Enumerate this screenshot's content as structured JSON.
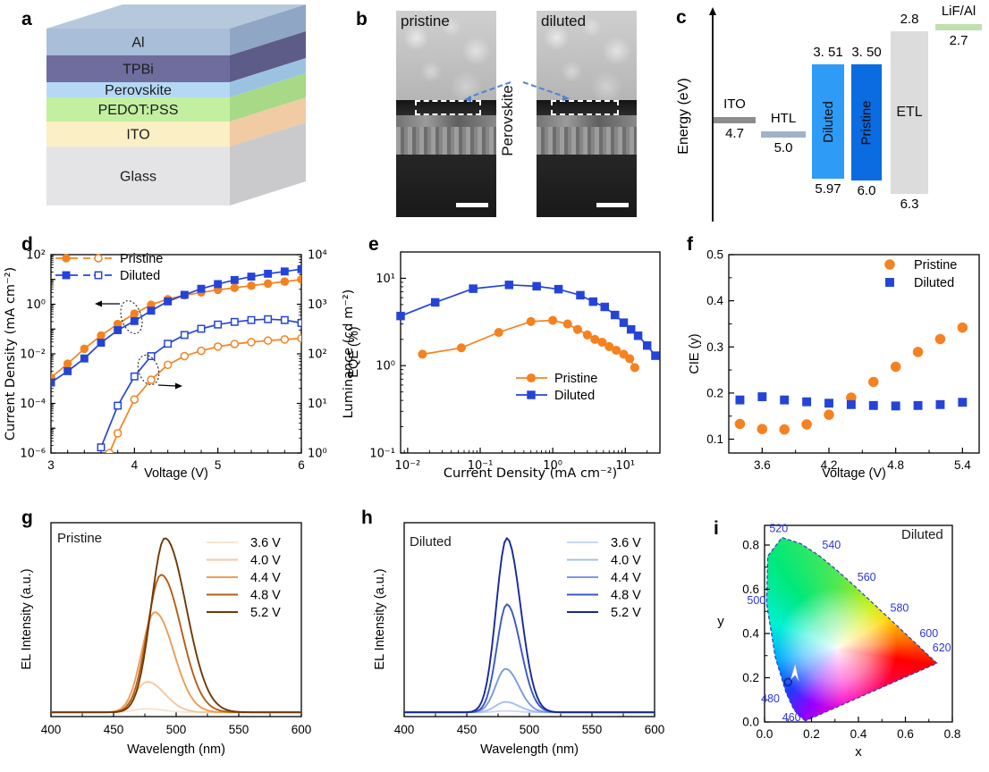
{
  "panel_letters": {
    "a": "a",
    "b": "b",
    "c": "c",
    "d": "d",
    "e": "e",
    "f": "f",
    "g": "g",
    "h": "h",
    "i": "i"
  },
  "colors": {
    "pristine": "#F58220",
    "diluted": "#2444D8",
    "arrow_blue": "#4F81D6",
    "cie_label_blue": "#2B36D8"
  },
  "panel_a": {
    "layers": [
      {
        "name": "Al",
        "front": "#A9BED9",
        "side": "#8FA6C4"
      },
      {
        "name": "TPBi",
        "front": "#6F6D9E",
        "side": "#5D5B88"
      },
      {
        "name": "Perovskite",
        "front": "#B5D9F5",
        "side": "#9CC2E2"
      },
      {
        "name": "PEDOT:PSS",
        "front": "#C2EFA0",
        "side": "#A8D986"
      },
      {
        "name": "ITO",
        "front": "#FBEFC5",
        "side": "#F0CBA4"
      },
      {
        "name": "Glass",
        "front": "#E4E4E6",
        "side": "#CACACD"
      }
    ],
    "top_color": "#B6C8DC"
  },
  "panel_b": {
    "left_label": "pristine",
    "right_label": "diluted",
    "annotation": "Perovskite"
  },
  "panel_c": {
    "axis_label": "Energy (eV)",
    "bars": [
      {
        "id": "ITO",
        "type": "thin",
        "label": "ITO",
        "value": "4.7",
        "e": 4.7,
        "color": "#8C8C8C"
      },
      {
        "id": "HTL",
        "type": "thin",
        "label": "HTL",
        "value": "5.0",
        "e": 5.0,
        "color": "#9FB3C8"
      },
      {
        "id": "Diluted",
        "type": "tall",
        "text": "Diluted",
        "top_label": "3. 51",
        "bottom_label": "5.97",
        "e_top": 3.51,
        "e_bottom": 5.97,
        "color": "#2E9BF7"
      },
      {
        "id": "Pristine",
        "type": "tall",
        "text": "Pristine",
        "top_label": "3. 50",
        "bottom_label": "6.0",
        "e_top": 3.5,
        "e_bottom": 6.0,
        "color": "#0B6BE0"
      },
      {
        "id": "ETL",
        "type": "tall",
        "text": "ETL",
        "top_label": "2.8",
        "bottom_label": "6.3",
        "e_top": 2.8,
        "e_bottom": 6.3,
        "color": "#DCDCDC"
      },
      {
        "id": "LiF/Al",
        "type": "thin",
        "label": "LiF/Al",
        "value": "2.7",
        "e": 2.7,
        "color": "#BFDFAE"
      }
    ]
  },
  "chart_data": [
    {
      "id": "d",
      "type": "line",
      "x": {
        "label": "Voltage (V)",
        "min": 3,
        "max": 6,
        "ticks": [
          {
            "v": 3,
            "label": "3"
          },
          {
            "v": 4,
            "label": "4"
          },
          {
            "v": 5,
            "label": "5"
          },
          {
            "v": 6,
            "label": "6"
          }
        ]
      },
      "y_left": {
        "label": "Current Density (mA cm⁻²)",
        "scale": "log",
        "min": 1e-06,
        "max": 100,
        "ticks": [
          {
            "v": 100,
            "label": "10²"
          },
          {
            "v": 1,
            "label": "10⁰"
          },
          {
            "v": 0.01,
            "label": "10⁻²"
          },
          {
            "v": 0.0001,
            "label": "10⁻⁴"
          },
          {
            "v": 1e-06,
            "label": "10⁻⁶"
          }
        ]
      },
      "y_right": {
        "label": "Luminance (cd m⁻²)",
        "scale": "log",
        "min": 1,
        "max": 10000,
        "ticks": [
          {
            "v": 10000,
            "label": "10⁴"
          },
          {
            "v": 1000,
            "label": "10³"
          },
          {
            "v": 100,
            "label": "10²"
          },
          {
            "v": 10,
            "label": "10¹"
          },
          {
            "v": 1,
            "label": "10⁰"
          }
        ]
      },
      "legend": [
        {
          "label": "Pristine",
          "color": "#F58220",
          "marker": "circle"
        },
        {
          "label": "Diluted",
          "color": "#2444D8",
          "marker": "square"
        }
      ],
      "series": [
        {
          "name": "Pristine current density",
          "axis": "left",
          "color": "#F58220",
          "marker": "circle",
          "fill": "filled",
          "x": [
            3.0,
            3.2,
            3.4,
            3.6,
            3.8,
            4.0,
            4.2,
            4.4,
            4.6,
            4.8,
            5.0,
            5.2,
            5.4,
            5.6,
            5.8,
            6.0
          ],
          "y": [
            0.0011,
            0.004,
            0.016,
            0.055,
            0.16,
            0.42,
            0.95,
            1.6,
            2.3,
            3.0,
            3.8,
            4.6,
            5.6,
            6.8,
            8.2,
            10
          ]
        },
        {
          "name": "Diluted current density",
          "axis": "left",
          "color": "#2444D8",
          "marker": "square",
          "fill": "filled",
          "x": [
            3.0,
            3.2,
            3.4,
            3.6,
            3.8,
            4.0,
            4.2,
            4.4,
            4.6,
            4.8,
            5.0,
            5.2,
            5.4,
            5.6,
            5.8,
            6.0
          ],
          "y": [
            0.0007,
            0.002,
            0.0065,
            0.028,
            0.09,
            0.21,
            0.55,
            1.3,
            2.4,
            4.2,
            6.5,
            9.5,
            13,
            17,
            21,
            26
          ]
        },
        {
          "name": "Pristine luminance",
          "axis": "right",
          "color": "#F58220",
          "marker": "circle",
          "fill": "open",
          "x": [
            3.7,
            3.8,
            4.0,
            4.2,
            4.4,
            4.6,
            4.8,
            5.0,
            5.2,
            5.4,
            5.6,
            5.8,
            6.0
          ],
          "y": [
            1.0,
            2.5,
            12,
            30,
            60,
            90,
            115,
            140,
            158,
            172,
            185,
            195,
            205
          ]
        },
        {
          "name": "Diluted luminance",
          "axis": "right",
          "color": "#2444D8",
          "marker": "square",
          "fill": "open",
          "x": [
            3.6,
            3.8,
            4.0,
            4.2,
            4.4,
            4.6,
            4.8,
            5.0,
            5.2,
            5.4,
            5.6,
            5.8,
            6.0
          ],
          "y": [
            1.3,
            9,
            35,
            90,
            160,
            240,
            320,
            390,
            440,
            480,
            500,
            480,
            420
          ]
        }
      ]
    },
    {
      "id": "e",
      "type": "line",
      "x": {
        "label": "Current Density (mA cm⁻²)",
        "scale": "log",
        "min": 0.008,
        "max": 30,
        "ticks": [
          {
            "v": 0.01,
            "label": "10⁻²"
          },
          {
            "v": 0.1,
            "label": "10⁻¹"
          },
          {
            "v": 1,
            "label": "10⁰"
          },
          {
            "v": 10,
            "label": "10¹"
          }
        ]
      },
      "y": {
        "label": "EQE (%)",
        "scale": "log",
        "min": 0.1,
        "max": 20,
        "ticks": [
          {
            "v": 10,
            "label": "10¹"
          },
          {
            "v": 1,
            "label": "10⁰"
          },
          {
            "v": 0.1,
            "label": "10⁻¹"
          }
        ]
      },
      "legend": [
        {
          "label": "Pristine",
          "color": "#F58220",
          "marker": "circle"
        },
        {
          "label": "Diluted",
          "color": "#2444D8",
          "marker": "square"
        }
      ],
      "series": [
        {
          "name": "Pristine EQE",
          "color": "#F58220",
          "marker": "circle",
          "fill": "filled",
          "x": [
            0.016,
            0.055,
            0.18,
            0.5,
            1.0,
            1.6,
            2.2,
            3.0,
            3.8,
            4.8,
            6.0,
            7.5,
            9.5,
            11.5,
            13.5
          ],
          "y": [
            1.35,
            1.6,
            2.4,
            3.2,
            3.3,
            3.0,
            2.6,
            2.25,
            2.0,
            1.85,
            1.65,
            1.5,
            1.35,
            1.2,
            0.95
          ]
        },
        {
          "name": "Diluted EQE",
          "color": "#2444D8",
          "marker": "square",
          "fill": "filled",
          "x": [
            0.008,
            0.024,
            0.08,
            0.25,
            0.6,
            1.2,
            2.4,
            3.6,
            5.2,
            7.2,
            9.5,
            12,
            15,
            20,
            26
          ],
          "y": [
            3.7,
            5.3,
            7.6,
            8.4,
            8.1,
            7.5,
            6.4,
            5.4,
            4.7,
            3.8,
            3.1,
            2.6,
            2.2,
            1.7,
            1.3
          ]
        }
      ]
    },
    {
      "id": "f",
      "type": "scatter",
      "x": {
        "label": "Voltage (V)",
        "min": 3.3,
        "max": 5.55,
        "ticks": [
          {
            "v": 3.6,
            "label": "3.6"
          },
          {
            "v": 4.2,
            "label": "4.2"
          },
          {
            "v": 4.8,
            "label": "4.8"
          },
          {
            "v": 5.4,
            "label": "5.4"
          }
        ]
      },
      "y": {
        "label": "CIE (y)",
        "min": 0.07,
        "max": 0.5,
        "ticks": [
          {
            "v": 0.1,
            "label": "0.1"
          },
          {
            "v": 0.2,
            "label": "0.2"
          },
          {
            "v": 0.3,
            "label": "0.3"
          },
          {
            "v": 0.4,
            "label": "0.4"
          },
          {
            "v": 0.5,
            "label": "0.5"
          }
        ]
      },
      "legend": [
        {
          "label": "Pristine",
          "color": "#F58220",
          "marker": "circle"
        },
        {
          "label": "Diluted",
          "color": "#2444D8",
          "marker": "square"
        }
      ],
      "series": [
        {
          "name": "Pristine CIE y",
          "color": "#F58220",
          "marker": "circle",
          "fill": "filled",
          "x": [
            3.4,
            3.6,
            3.8,
            4.0,
            4.2,
            4.4,
            4.6,
            4.8,
            5.0,
            5.2,
            5.4
          ],
          "y": [
            0.133,
            0.122,
            0.121,
            0.132,
            0.153,
            0.19,
            0.224,
            0.257,
            0.289,
            0.317,
            0.342
          ]
        },
        {
          "name": "Diluted CIE y",
          "color": "#2444D8",
          "marker": "square",
          "fill": "filled",
          "x": [
            3.4,
            3.6,
            3.8,
            4.0,
            4.2,
            4.4,
            4.6,
            4.8,
            5.0,
            5.2,
            5.4
          ],
          "y": [
            0.185,
            0.192,
            0.185,
            0.181,
            0.178,
            0.175,
            0.173,
            0.172,
            0.173,
            0.175,
            0.18
          ]
        }
      ]
    },
    {
      "id": "g",
      "type": "spectra",
      "inset": "Pristine",
      "x": {
        "label": "Wavelength (nm)",
        "min": 400,
        "max": 600,
        "ticks": [
          {
            "v": 400,
            "label": "400"
          },
          {
            "v": 450,
            "label": "450"
          },
          {
            "v": 500,
            "label": "500"
          },
          {
            "v": 550,
            "label": "550"
          },
          {
            "v": 600,
            "label": "600"
          }
        ]
      },
      "y": {
        "label": "EL Intensity (a.u.)"
      },
      "series": [
        {
          "label": "3.6 V",
          "color": "#FAE3CE",
          "peak_nm": 477,
          "height": 0.02,
          "sigma_left": 10,
          "sigma_right": 13
        },
        {
          "label": "4.0 V",
          "color": "#F7C79B",
          "peak_nm": 477,
          "height": 0.175,
          "sigma_left": 10,
          "sigma_right": 14
        },
        {
          "label": "4.4 V",
          "color": "#EF9B54",
          "peak_nm": 483,
          "height": 0.575,
          "sigma_left": 10.5,
          "sigma_right": 15
        },
        {
          "label": "4.8 V",
          "color": "#B55E13",
          "peak_nm": 488,
          "height": 0.79,
          "sigma_left": 11,
          "sigma_right": 16
        },
        {
          "label": "5.2 V",
          "color": "#6E3A06",
          "peak_nm": 491,
          "height": 1.0,
          "sigma_left": 11,
          "sigma_right": 17
        }
      ]
    },
    {
      "id": "h",
      "type": "spectra",
      "inset": "Diluted",
      "x": {
        "label": "Wavelength (nm)",
        "min": 400,
        "max": 600,
        "ticks": [
          {
            "v": 400,
            "label": "400"
          },
          {
            "v": 450,
            "label": "450"
          },
          {
            "v": 500,
            "label": "500"
          },
          {
            "v": 550,
            "label": "550"
          },
          {
            "v": 600,
            "label": "600"
          }
        ]
      },
      "y": {
        "label": "EL Intensity (a.u.)"
      },
      "series": [
        {
          "label": "3.6 V",
          "color": "#CBD7F4",
          "peak_nm": 481,
          "height": 0.008,
          "sigma_left": 8,
          "sigma_right": 10.5
        },
        {
          "label": "4.0 V",
          "color": "#A9BCEE",
          "peak_nm": 481,
          "height": 0.06,
          "sigma_left": 8,
          "sigma_right": 10.5
        },
        {
          "label": "4.4 V",
          "color": "#7E97DE",
          "peak_nm": 481,
          "height": 0.25,
          "sigma_left": 8,
          "sigma_right": 10.5
        },
        {
          "label": "4.8 V",
          "color": "#3B57C4",
          "peak_nm": 482,
          "height": 0.62,
          "sigma_left": 8,
          "sigma_right": 11
        },
        {
          "label": "5.2 V",
          "color": "#16299B",
          "peak_nm": 482,
          "height": 1.0,
          "sigma_left": 8.5,
          "sigma_right": 11
        }
      ]
    },
    {
      "id": "i",
      "type": "cie_diagram",
      "inset": "Diluted",
      "x": {
        "label": "x",
        "min": 0,
        "max": 0.8,
        "ticks": [
          {
            "v": 0,
            "label": "0.0"
          },
          {
            "v": 0.2,
            "label": "0.2"
          },
          {
            "v": 0.4,
            "label": "0.4"
          },
          {
            "v": 0.6,
            "label": "0.6"
          },
          {
            "v": 0.8,
            "label": "0.8"
          }
        ]
      },
      "y": {
        "label": "y",
        "min": 0,
        "max": 0.89,
        "ticks": [
          {
            "v": 0,
            "label": "0.0"
          },
          {
            "v": 0.2,
            "label": "0.2"
          },
          {
            "v": 0.4,
            "label": "0.4"
          },
          {
            "v": 0.6,
            "label": "0.6"
          },
          {
            "v": 0.8,
            "label": "0.8"
          }
        ]
      },
      "point": {
        "x": 0.1,
        "y": 0.18
      },
      "wavelength_labels": [
        {
          "label": "520",
          "x": 0.06,
          "y": 0.875
        },
        {
          "label": "540",
          "x": 0.285,
          "y": 0.8
        },
        {
          "label": "560",
          "x": 0.435,
          "y": 0.655
        },
        {
          "label": "580",
          "x": 0.575,
          "y": 0.515
        },
        {
          "label": "600",
          "x": 0.7,
          "y": 0.4
        },
        {
          "label": "620",
          "x": 0.755,
          "y": 0.335
        },
        {
          "label": "500",
          "x": -0.035,
          "y": 0.55
        },
        {
          "label": "480",
          "x": 0.025,
          "y": 0.105
        },
        {
          "label": "460",
          "x": 0.115,
          "y": 0.02
        }
      ],
      "locus": [
        [
          0.1741,
          0.005
        ],
        [
          0.144,
          0.0297
        ],
        [
          0.1241,
          0.0578
        ],
        [
          0.0913,
          0.1327
        ],
        [
          0.0454,
          0.295
        ],
        [
          0.0082,
          0.5384
        ],
        [
          0.0139,
          0.7502
        ],
        [
          0.0743,
          0.8338
        ],
        [
          0.1547,
          0.8059
        ],
        [
          0.2296,
          0.7543
        ],
        [
          0.3016,
          0.6923
        ],
        [
          0.3731,
          0.6245
        ],
        [
          0.4441,
          0.5547
        ],
        [
          0.5125,
          0.4866
        ],
        [
          0.5752,
          0.4242
        ],
        [
          0.627,
          0.3725
        ],
        [
          0.6658,
          0.334
        ],
        [
          0.6915,
          0.3083
        ],
        [
          0.719,
          0.2809
        ],
        [
          0.7347,
          0.2653
        ]
      ]
    }
  ]
}
